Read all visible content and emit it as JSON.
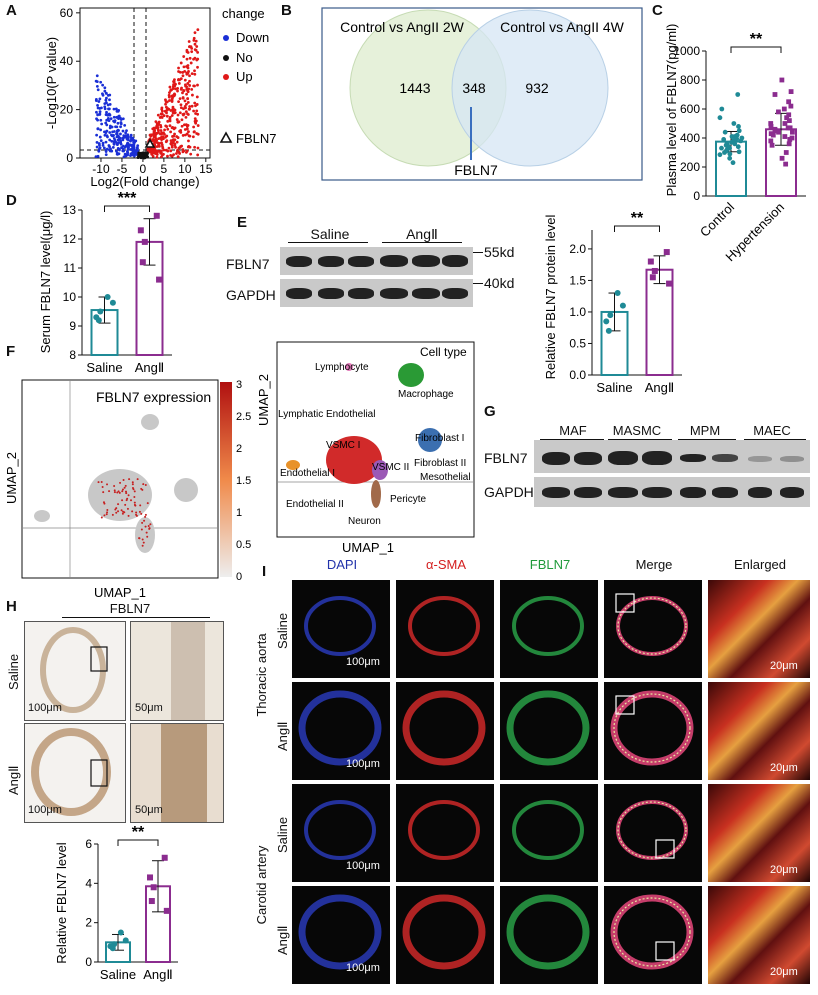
{
  "panels": {
    "A": "A",
    "B": "B",
    "C": "C",
    "D": "D",
    "E": "E",
    "F": "F",
    "G": "G",
    "H": "H",
    "I": "I"
  },
  "panelA": {
    "ylabel": "-Log10(P value)",
    "xlabel": "Log2(Fold change)",
    "xticks": [
      "-10",
      "-5",
      "0",
      "5",
      "10",
      "15"
    ],
    "yticks": [
      "0",
      "20",
      "40",
      "60"
    ],
    "legend_title": "change",
    "legend": [
      {
        "label": "Down",
        "color": "#1a2fd6"
      },
      {
        "label": "No",
        "color": "#111111"
      },
      {
        "label": "Up",
        "color": "#e01818"
      }
    ],
    "marker_label": "FBLN7"
  },
  "panelB": {
    "left": "Control vs AngII 2W",
    "right": "Control vs AngII 4W",
    "only_left": "1443",
    "shared": "348",
    "only_right": "932",
    "callout": "FBLN7",
    "left_color": "#e3efd6",
    "right_color": "#d5e6f4"
  },
  "panelC": {
    "ylabel": "Plasma level of FBLN7(pg/ml)",
    "yticks": [
      "0",
      "200",
      "400",
      "600",
      "800",
      "1000"
    ],
    "categories": [
      "Control",
      "Hypertension"
    ],
    "sig": "**"
  },
  "panelD": {
    "ylabel": "Serum FBLN7 level(μg/l)",
    "yticks": [
      "8",
      "9",
      "10",
      "11",
      "12",
      "13"
    ],
    "categories": [
      "Saline",
      "AngⅡ"
    ],
    "sig": "***"
  },
  "panelE": {
    "groups": [
      "Saline",
      "AngⅡ"
    ],
    "rows": [
      "FBLN7",
      "GAPDH"
    ],
    "sizes": [
      "55kd",
      "40kd"
    ],
    "ylabel": "Relative FBLN7 protein level",
    "yticks": [
      "0.0",
      "0.5",
      "1.0",
      "1.5",
      "2.0"
    ],
    "categories": [
      "Saline",
      "AngⅡ"
    ],
    "sig": "**"
  },
  "panelF": {
    "title": "FBLN7 expression",
    "xlabel": "UMAP_1",
    "ylabel": "UMAP_2",
    "scale": [
      "3",
      "2.5",
      "2",
      "1.5",
      "1",
      "0.5",
      "0"
    ]
  },
  "umap": {
    "title": "Cell type",
    "xlabel": "UMAP_1",
    "ylabel": "UMAP_2",
    "labels": [
      "Lymphocyte",
      "Macrophage",
      "Lymphatic Endothelial",
      "VSMC I",
      "Fibroblast I",
      "Endothelial I",
      "VSMC II",
      "Fibroblast II",
      "Mesothelial",
      "Pericyte",
      "Endothelial II",
      "Neuron"
    ]
  },
  "panelG": {
    "groups": [
      "MAF",
      "MASMC",
      "MPM",
      "MAEC"
    ],
    "rows": [
      "FBLN7",
      "GAPDH"
    ]
  },
  "panelH": {
    "title": "FBLN7",
    "rows": [
      "Saline",
      "AngⅡ"
    ],
    "scale_big": "100μm",
    "scale_small": "50μm",
    "ylabel": "Relative FBLN7 level",
    "yticks": [
      "0",
      "2",
      "4",
      "6"
    ],
    "categories": [
      "Saline",
      "AngⅡ"
    ],
    "sig": "**"
  },
  "panelI": {
    "columns": [
      {
        "label": "DAPI",
        "color": "#2233aa"
      },
      {
        "label": "α-SMA",
        "color": "#d42020"
      },
      {
        "label": "FBLN7",
        "color": "#1f9a3a"
      },
      {
        "label": "Merge",
        "color": "#111111"
      },
      {
        "label": "Enlarged",
        "color": "#111111"
      }
    ],
    "tissues": [
      "Thoracic aorta",
      "Carotid artery"
    ],
    "rows": [
      "Saline",
      "AngⅡ",
      "Saline",
      "AngⅡ"
    ],
    "scale_big": "100μm",
    "scale_small": "20μm"
  },
  "chart_data": [
    {
      "type": "scatter",
      "panel": "A",
      "xlabel": "Log2(Fold change)",
      "ylabel": "-Log10(P value)",
      "xlim": [
        -15,
        16
      ],
      "ylim": [
        0,
        62
      ],
      "series": [
        {
          "name": "Down",
          "color": "#1a2fd6"
        },
        {
          "name": "No",
          "color": "#111111"
        },
        {
          "name": "Up",
          "color": "#e01818"
        }
      ],
      "annotations": [
        {
          "label": "FBLN7",
          "x": 3,
          "y": 2
        }
      ]
    },
    {
      "type": "bar",
      "panel": "C",
      "categories": [
        "Control",
        "Hypertension"
      ],
      "values": [
        375,
        460
      ],
      "errors": [
        70,
        110
      ],
      "ylim": [
        0,
        1000
      ],
      "ylabel": "Plasma level of FBLN7(pg/ml)",
      "points": [
        [
          410,
          380,
          350,
          330,
          300,
          420,
          390,
          360,
          340,
          320,
          500,
          450,
          400,
          370,
          310,
          290,
          260,
          230,
          440,
          480,
          600,
          700,
          540,
          350,
          330,
          410,
          380,
          360,
          395,
          345,
          305,
          285
        ],
        [
          520,
          480,
          450,
          420,
          400,
          380,
          360,
          600,
          650,
          700,
          800,
          720,
          560,
          500,
          470,
          440,
          410,
          390,
          350,
          300,
          260,
          220,
          500,
          460,
          430,
          620,
          580,
          540,
          470,
          440
        ]
      ]
    },
    {
      "type": "bar",
      "panel": "D",
      "categories": [
        "Saline",
        "AngⅡ"
      ],
      "values": [
        9.55,
        11.9
      ],
      "errors": [
        0.45,
        0.8
      ],
      "ylim": [
        8,
        13
      ],
      "ylabel": "Serum FBLN7 level(μg/l)",
      "points": [
        [
          10,
          9.8,
          9.5,
          9.3,
          9.2
        ],
        [
          12.8,
          12.3,
          11.9,
          11.2,
          10.6
        ]
      ]
    },
    {
      "type": "bar",
      "panel": "E",
      "categories": [
        "Saline",
        "AngⅡ"
      ],
      "values": [
        1.0,
        1.67
      ],
      "errors": [
        0.3,
        0.22
      ],
      "ylim": [
        0,
        2.3
      ],
      "ylabel": "Relative FBLN7 protein level",
      "points": [
        [
          1.3,
          1.1,
          0.95,
          0.85,
          0.7
        ],
        [
          1.95,
          1.8,
          1.65,
          1.55,
          1.45
        ]
      ]
    },
    {
      "type": "bar",
      "panel": "H",
      "categories": [
        "Saline",
        "AngⅡ"
      ],
      "values": [
        1.0,
        3.85
      ],
      "errors": [
        0.4,
        1.3
      ],
      "ylim": [
        0,
        6
      ],
      "ylabel": "Relative FBLN7 level",
      "points": [
        [
          1.5,
          1.1,
          0.9,
          0.8,
          0.7
        ],
        [
          5.3,
          4.3,
          3.8,
          3.1,
          2.6
        ]
      ]
    }
  ]
}
